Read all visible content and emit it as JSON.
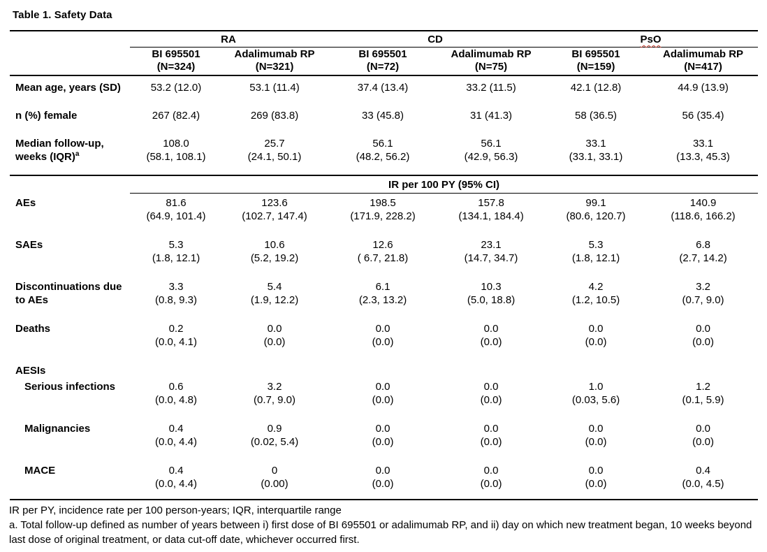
{
  "title": "Table 1. Safety Data",
  "table": {
    "groups": [
      {
        "label": "RA"
      },
      {
        "label": "CD"
      },
      {
        "label": "PsO",
        "spellcheck_flagged": true
      }
    ],
    "columns": [
      {
        "drug": "BI 695501",
        "n": "(N=324)"
      },
      {
        "drug": "Adalimumab RP",
        "n": "(N=321)"
      },
      {
        "drug": "BI 695501",
        "n": "(N=72)"
      },
      {
        "drug": "Adalimumab RP",
        "n": "(N=75)"
      },
      {
        "drug": "BI 695501",
        "n": "(N=159)"
      },
      {
        "drug": "Adalimumab RP",
        "n": "(N=417)"
      }
    ],
    "demographics": [
      {
        "label": "Mean age, years (SD)",
        "values": [
          "53.2 (12.0)",
          "53.1 (11.4)",
          "37.4 (13.4)",
          "33.2 (11.5)",
          "42.1 (12.8)",
          "44.9 (13.9)"
        ]
      },
      {
        "label": "n (%) female",
        "values": [
          "267 (82.4)",
          "269 (83.8)",
          "33 (45.8)",
          "31 (41.3)",
          "58 (36.5)",
          "56 (35.4)"
        ]
      },
      {
        "label": "Median follow-up, weeks (IQR)",
        "footnote_marker": "a",
        "values": [
          "108.0",
          "25.7",
          "56.1",
          "56.1",
          "33.1",
          "33.1"
        ],
        "ci": [
          "(58.1, 108.1)",
          "(24.1, 50.1)",
          "(48.2, 56.2)",
          "(42.9, 56.3)",
          "(33.1, 33.1)",
          "(13.3, 45.3)"
        ]
      }
    ],
    "section_header": "IR per 100 PY (95% CI)",
    "ir_rows": [
      {
        "label": "AEs",
        "values": [
          "81.6",
          "123.6",
          "198.5",
          "157.8",
          "99.1",
          "140.9"
        ],
        "ci": [
          "(64.9, 101.4)",
          "(102.7, 147.4)",
          "(171.9, 228.2)",
          "(134.1, 184.4)",
          "(80.6, 120.7)",
          "(118.6, 166.2)"
        ]
      },
      {
        "label": "SAEs",
        "values": [
          "5.3",
          "10.6",
          "12.6",
          "23.1",
          "5.3",
          "6.8"
        ],
        "ci": [
          "(1.8, 12.1)",
          "(5.2, 19.2)",
          "( 6.7, 21.8)",
          "(14.7, 34.7)",
          "(1.8, 12.1)",
          "(2.7, 14.2)"
        ]
      },
      {
        "label": "Discontinuations due to AEs",
        "values": [
          "3.3",
          "5.4",
          "6.1",
          "10.3",
          "4.2",
          "3.2"
        ],
        "ci": [
          "(0.8, 9.3)",
          "(1.9, 12.2)",
          "(2.3, 13.2)",
          "(5.0, 18.8)",
          "(1.2, 10.5)",
          "(0.7, 9.0)"
        ]
      },
      {
        "label": "Deaths",
        "values": [
          "0.2",
          "0.0",
          "0.0",
          "0.0",
          "0.0",
          "0.0"
        ],
        "ci": [
          "(0.0, 4.1)",
          "(0.0)",
          "(0.0)",
          "(0.0)",
          "(0.0)",
          "(0.0)"
        ]
      },
      {
        "label": "AESIs",
        "group_label": true
      },
      {
        "label": "Serious infections",
        "indent": true,
        "values": [
          "0.6",
          "3.2",
          "0.0",
          "0.0",
          "1.0",
          "1.2"
        ],
        "ci": [
          "(0.0, 4.8)",
          "(0.7, 9.0)",
          "(0.0)",
          "(0.0)",
          "(0.03, 5.6)",
          "(0.1, 5.9)"
        ]
      },
      {
        "label": "Malignancies",
        "indent": true,
        "values": [
          "0.4",
          "0.9",
          "0.0",
          "0.0",
          "0.0",
          "0.0"
        ],
        "ci": [
          "(0.0, 4.4)",
          "(0.02, 5.4)",
          "(0.0)",
          "(0.0)",
          "(0.0)",
          "(0.0)"
        ]
      },
      {
        "label": "MACE",
        "indent": true,
        "values": [
          "0.4",
          "0",
          "0.0",
          "0.0",
          "0.0",
          "0.4"
        ],
        "ci": [
          "(0.0, 4.4)",
          "(0.00)",
          "(0.0)",
          "(0.0)",
          "(0.0)",
          "(0.0, 4.5)"
        ]
      }
    ],
    "footnotes": [
      "IR per PY, incidence rate per 100 person-years; IQR, interquartile range",
      "a. Total follow-up defined as number of years between i) first dose of BI 695501 or adalimumab RP, and ii) day on which new treatment began, 10 weeks beyond last dose of original treatment, or data cut-off date, whichever occurred first."
    ],
    "colors": {
      "text": "#000000",
      "rules": "#000000",
      "background": "#ffffff",
      "spellcheck_underline": "#c23b2e"
    }
  }
}
